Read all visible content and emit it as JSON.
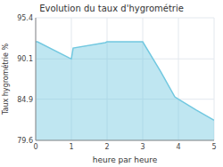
{
  "chart_data": {
    "type": "area",
    "title": "Evolution du taux d'hygrométrie",
    "x_label": "heure par heure",
    "y_label": "Taux hygrométrie %",
    "x": [
      0,
      0.05,
      0.95,
      1,
      1.05,
      1.95,
      2,
      2.95,
      3,
      3.5,
      3.9,
      4,
      4.5,
      5
    ],
    "values": [
      92.3,
      92.3,
      90.2,
      90.1,
      91.5,
      92.2,
      92.3,
      92.3,
      92.3,
      88.5,
      85.2,
      84.9,
      83.5,
      82.2
    ],
    "color": "#72c8e0",
    "xlim": [
      0,
      5
    ],
    "ylim": [
      79.6,
      95.4
    ],
    "xticks": [
      0,
      1,
      2,
      3,
      4,
      5
    ],
    "yticks": [
      79.6,
      84.9,
      90.1,
      95.4
    ],
    "grid": true
  }
}
